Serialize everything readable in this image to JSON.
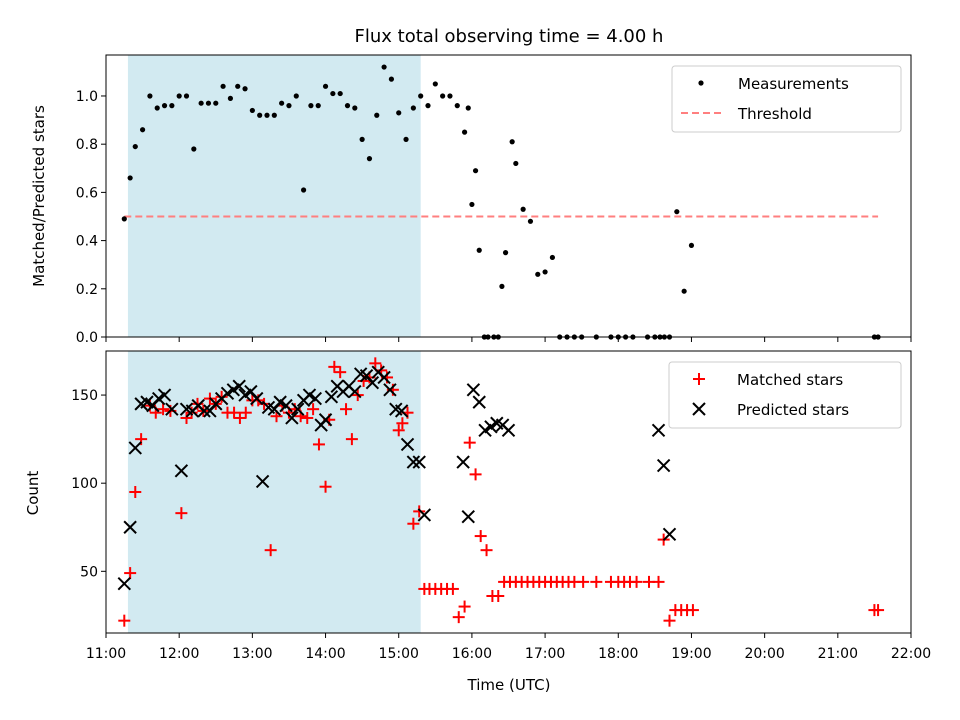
{
  "chart_data": [
    {
      "type": "scatter",
      "title": "Flux total observing time = 4.00 h",
      "xlabel": "",
      "ylabel": "Matched/Predicted stars",
      "xlim": [
        11.0,
        22.0
      ],
      "ylim": [
        0,
        1.17
      ],
      "yticks": [
        0.0,
        0.2,
        0.4,
        0.6,
        0.8,
        1.0
      ],
      "ytick_labels": [
        "0.0",
        "0.2",
        "0.4",
        "0.6",
        "0.8",
        "1.0"
      ],
      "highlight_span": {
        "start": 11.3,
        "end": 15.3,
        "color": "#add8e6"
      },
      "legend": {
        "position": "upper right",
        "entries": [
          "Measurements",
          "Threshold"
        ]
      },
      "series": [
        {
          "name": "Measurements",
          "kind": "scatter",
          "marker": "dot",
          "color": "#000000",
          "x": [
            11.25,
            11.33,
            11.4,
            11.5,
            11.6,
            11.7,
            11.8,
            11.9,
            12.0,
            12.1,
            12.2,
            12.3,
            12.4,
            12.5,
            12.6,
            12.7,
            12.8,
            12.9,
            13.0,
            13.1,
            13.2,
            13.3,
            13.4,
            13.5,
            13.6,
            13.7,
            13.8,
            13.9,
            14.0,
            14.1,
            14.2,
            14.3,
            14.4,
            14.5,
            14.6,
            14.7,
            14.8,
            14.9,
            15.0,
            15.1,
            15.2,
            15.3,
            15.4,
            15.5,
            15.6,
            15.7,
            15.8,
            15.9,
            15.95,
            16.0,
            16.05,
            16.1,
            16.17,
            16.22,
            16.3,
            16.36,
            16.41,
            16.46,
            16.55,
            16.6,
            16.7,
            16.8,
            16.9,
            17.0,
            17.1,
            17.2,
            17.3,
            17.4,
            17.5,
            17.7,
            17.9,
            18.0,
            18.1,
            18.2,
            18.4,
            18.5,
            18.57,
            18.63,
            18.7,
            18.8,
            18.9,
            19.0,
            21.5,
            21.55
          ],
          "y": [
            0.49,
            0.66,
            0.79,
            0.86,
            1.0,
            0.95,
            0.96,
            0.96,
            1.0,
            1.0,
            0.78,
            0.97,
            0.97,
            0.97,
            1.04,
            0.99,
            1.04,
            1.03,
            0.94,
            0.92,
            0.92,
            0.92,
            0.97,
            0.96,
            1.0,
            0.61,
            0.96,
            0.96,
            1.04,
            1.01,
            1.01,
            0.96,
            0.95,
            0.82,
            0.74,
            0.92,
            1.12,
            1.07,
            0.93,
            0.82,
            0.95,
            1.0,
            0.96,
            1.05,
            1.0,
            1.0,
            0.96,
            0.85,
            0.95,
            0.55,
            0.69,
            0.36,
            0.0,
            0.0,
            0.0,
            0.0,
            0.21,
            0.35,
            0.81,
            0.72,
            0.53,
            0.48,
            0.26,
            0.27,
            0.33,
            0.0,
            0.0,
            0.0,
            0.0,
            0.0,
            0.0,
            0.0,
            0.0,
            0.0,
            0.0,
            0.0,
            0.0,
            0.0,
            0.0,
            0.52,
            0.19,
            0.38,
            0.0,
            0.0
          ],
          "note": ""
        },
        {
          "name": "Threshold",
          "kind": "line",
          "style": "dashed",
          "color": "#ff7f7f",
          "x": [
            11.25,
            21.55
          ],
          "y": [
            0.5,
            0.5
          ]
        }
      ]
    },
    {
      "type": "scatter",
      "title": "",
      "xlabel": "Time (UTC)",
      "ylabel": "Count",
      "xlim": [
        11.0,
        22.0
      ],
      "ylim": [
        15,
        175
      ],
      "yticks": [
        50,
        100,
        150
      ],
      "ytick_labels": [
        "50",
        "100",
        "150"
      ],
      "xticks": [
        11,
        12,
        13,
        14,
        15,
        16,
        17,
        18,
        19,
        20,
        21,
        22
      ],
      "xtick_labels": [
        "11:00",
        "12:00",
        "13:00",
        "14:00",
        "15:00",
        "16:00",
        "17:00",
        "18:00",
        "19:00",
        "20:00",
        "21:00",
        "22:00"
      ],
      "highlight_span": {
        "start": 11.3,
        "end": 15.3,
        "color": "#add8e6"
      },
      "legend": {
        "position": "upper right",
        "entries": [
          "Matched stars",
          "Predicted stars"
        ]
      },
      "series": [
        {
          "name": "Matched stars",
          "kind": "scatter",
          "marker": "plus",
          "color": "#ff0000",
          "x": [
            11.25,
            11.33,
            11.4,
            11.48,
            11.6,
            11.68,
            11.78,
            11.88,
            12.03,
            12.1,
            12.17,
            12.25,
            12.33,
            12.42,
            12.5,
            12.58,
            12.66,
            12.75,
            12.83,
            12.91,
            13.0,
            13.08,
            13.16,
            13.25,
            13.33,
            13.41,
            13.5,
            13.58,
            13.66,
            13.75,
            13.83,
            13.91,
            14.0,
            14.05,
            14.12,
            14.2,
            14.28,
            14.36,
            14.44,
            14.52,
            14.6,
            14.68,
            14.76,
            14.84,
            14.92,
            15.0,
            15.05,
            15.12,
            15.2,
            15.28,
            15.35,
            15.42,
            15.5,
            15.58,
            15.66,
            15.74,
            15.82,
            15.9,
            15.97,
            16.05,
            16.12,
            16.2,
            16.28,
            16.36,
            16.44,
            16.52,
            16.6,
            16.68,
            16.76,
            16.84,
            16.92,
            17.0,
            17.08,
            17.16,
            17.24,
            17.32,
            17.4,
            17.52,
            17.7,
            17.9,
            18.0,
            18.08,
            18.16,
            18.25,
            18.42,
            18.55,
            18.62,
            18.7,
            18.78,
            18.86,
            18.94,
            19.02,
            21.5,
            21.55
          ],
          "y": [
            22,
            49,
            95,
            125,
            144,
            140,
            142,
            141,
            83,
            137,
            140,
            145,
            141,
            148,
            145,
            149,
            140,
            140,
            137,
            140,
            147,
            147,
            145,
            62,
            138,
            144,
            140,
            142,
            138,
            137,
            142,
            122,
            98,
            136,
            166,
            163,
            142,
            125,
            150,
            158,
            160,
            168,
            164,
            160,
            153,
            130,
            134,
            140,
            77,
            84,
            40,
            40,
            40,
            40,
            40,
            40,
            24,
            30,
            123,
            105,
            70,
            62,
            36,
            36,
            44,
            44,
            44,
            44,
            44,
            44,
            44,
            44,
            44,
            44,
            44,
            44,
            44,
            44,
            44,
            44,
            44,
            44,
            44,
            44,
            44,
            44,
            68,
            22,
            28,
            28,
            28,
            28,
            28,
            28
          ],
          "note": ""
        },
        {
          "name": "Predicted stars",
          "kind": "scatter",
          "marker": "x",
          "color": "#000000",
          "x": [
            11.25,
            11.33,
            11.4,
            11.48,
            11.56,
            11.64,
            11.72,
            11.8,
            11.9,
            12.03,
            12.1,
            12.18,
            12.26,
            12.34,
            12.42,
            12.5,
            12.58,
            12.66,
            12.74,
            12.82,
            12.9,
            12.98,
            13.06,
            13.14,
            13.22,
            13.3,
            13.38,
            13.46,
            13.54,
            13.62,
            13.7,
            13.78,
            13.86,
            13.94,
            14.0,
            14.08,
            14.16,
            14.24,
            14.32,
            14.4,
            14.48,
            14.56,
            14.64,
            14.72,
            14.8,
            14.88,
            14.96,
            15.04,
            15.12,
            15.2,
            15.28,
            15.35,
            15.88,
            15.95,
            16.02,
            16.1,
            16.18,
            16.26,
            16.34,
            16.42,
            16.5,
            18.55,
            18.62,
            18.7
          ],
          "y": [
            43,
            75,
            120,
            145,
            146,
            144,
            148,
            150,
            142,
            107,
            142,
            141,
            144,
            141,
            141,
            145,
            148,
            151,
            153,
            155,
            150,
            152,
            148,
            101,
            143,
            142,
            146,
            144,
            137,
            142,
            147,
            150,
            148,
            133,
            136,
            149,
            155,
            152,
            155,
            152,
            162,
            161,
            157,
            163,
            160,
            153,
            142,
            141,
            122,
            112,
            112,
            82,
            112,
            81,
            153,
            146,
            130,
            132,
            134,
            133,
            130,
            130,
            110,
            71
          ],
          "note": ""
        }
      ]
    }
  ]
}
